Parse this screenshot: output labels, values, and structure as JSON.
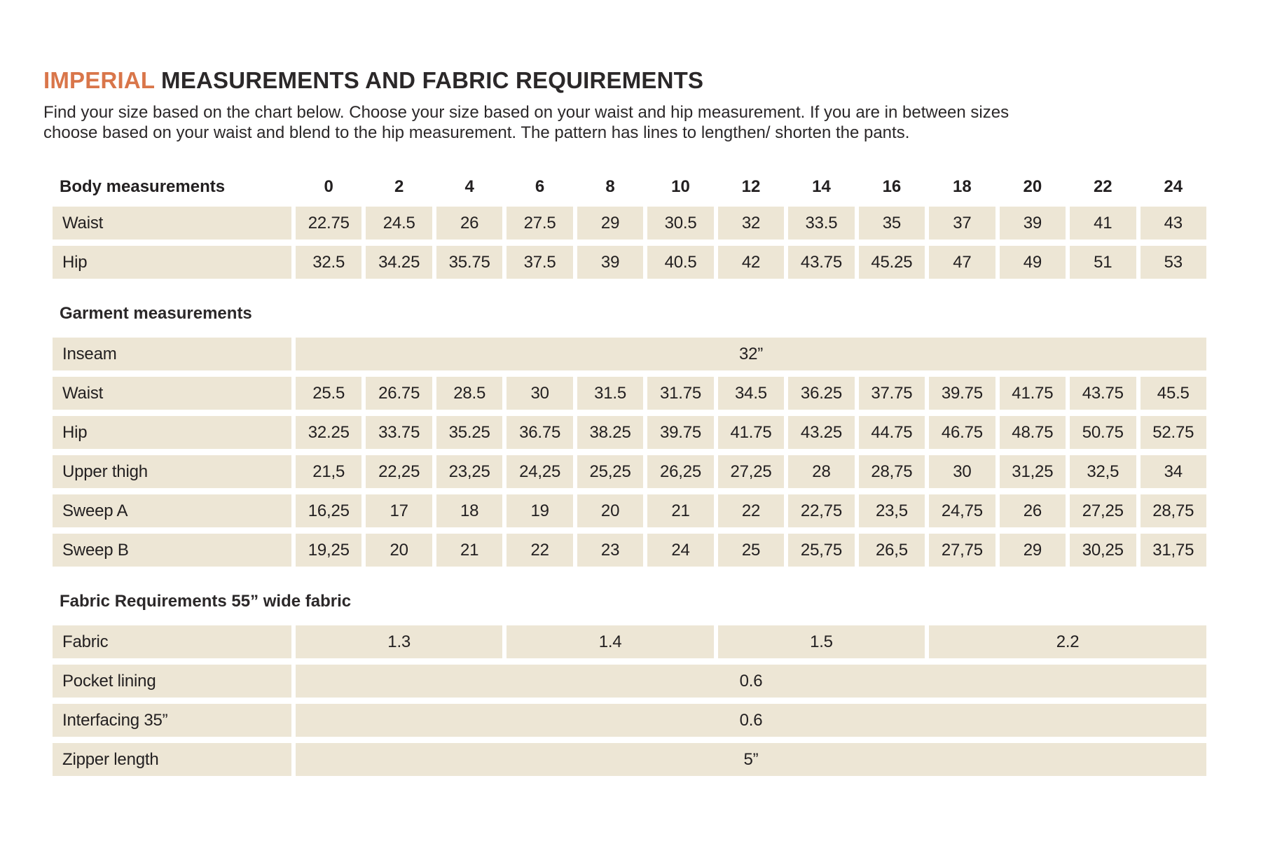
{
  "page": {
    "title_highlight": "IMPERIAL",
    "title_rest": " MEASUREMENTS AND FABRIC REQUIREMENTS",
    "intro_lines": [
      "Find your size based on the chart below. Choose your size based on your waist and hip measurement. If you are in between sizes",
      "choose based on your waist and blend to the hip measurement. The pattern has lines to lengthen/ shorten the pants."
    ]
  },
  "colors": {
    "accent_orange": "#D9764A",
    "cell_beige": "#EDE6D5",
    "text_dark": "#232021"
  },
  "sizes": [
    "0",
    "2",
    "4",
    "6",
    "8",
    "10",
    "12",
    "14",
    "16",
    "18",
    "20",
    "22",
    "24"
  ],
  "body_measurements": {
    "header": "Body measurements",
    "rows": [
      {
        "label": "Waist",
        "values": [
          "22.75",
          "24.5",
          "26",
          "27.5",
          "29",
          "30.5",
          "32",
          "33.5",
          "35",
          "37",
          "39",
          "41",
          "43"
        ]
      },
      {
        "label": "Hip",
        "values": [
          "32.5",
          "34.25",
          "35.75",
          "37.5",
          "39",
          "40.5",
          "42",
          "43.75",
          "45.25",
          "47",
          "49",
          "51",
          "53"
        ]
      }
    ]
  },
  "garment_measurements": {
    "header": "Garment measurements",
    "rows": [
      {
        "label": "Inseam",
        "merged": "32”"
      },
      {
        "label": "Waist",
        "values": [
          "25.5",
          "26.75",
          "28.5",
          "30",
          "31.5",
          "31.75",
          "34.5",
          "36.25",
          "37.75",
          "39.75",
          "41.75",
          "43.75",
          "45.5"
        ]
      },
      {
        "label": "Hip",
        "values": [
          "32.25",
          "33.75",
          "35.25",
          "36.75",
          "38.25",
          "39.75",
          "41.75",
          "43.25",
          "44.75",
          "46.75",
          "48.75",
          "50.75",
          "52.75"
        ]
      },
      {
        "label": "Upper thigh",
        "values": [
          "21,5",
          "22,25",
          "23,25",
          "24,25",
          "25,25",
          "26,25",
          "27,25",
          "28",
          "28,75",
          "30",
          "31,25",
          "32,5",
          "34"
        ]
      },
      {
        "label": "Sweep A",
        "values": [
          "16,25",
          "17",
          "18",
          "19",
          "20",
          "21",
          "22",
          "22,75",
          "23,5",
          "24,75",
          "26",
          "27,25",
          "28,75"
        ]
      },
      {
        "label": "Sweep B",
        "values": [
          "19,25",
          "20",
          "21",
          "22",
          "23",
          "24",
          "25",
          "25,75",
          "26,5",
          "27,75",
          "29",
          "30,25",
          "31,75"
        ]
      }
    ]
  },
  "fabric_requirements": {
    "header": "Fabric Requirements 55” wide fabric",
    "rows": [
      {
        "label": "Fabric",
        "spans": [
          {
            "value": "1.3",
            "cols": 3
          },
          {
            "value": "1.4",
            "cols": 3
          },
          {
            "value": "1.5",
            "cols": 3
          },
          {
            "value": "2.2",
            "cols": 4
          }
        ]
      },
      {
        "label": "Pocket lining",
        "merged": "0.6"
      },
      {
        "label": "Interfacing 35”",
        "merged": "0.6"
      },
      {
        "label": "Zipper length",
        "merged": "5”"
      }
    ]
  }
}
